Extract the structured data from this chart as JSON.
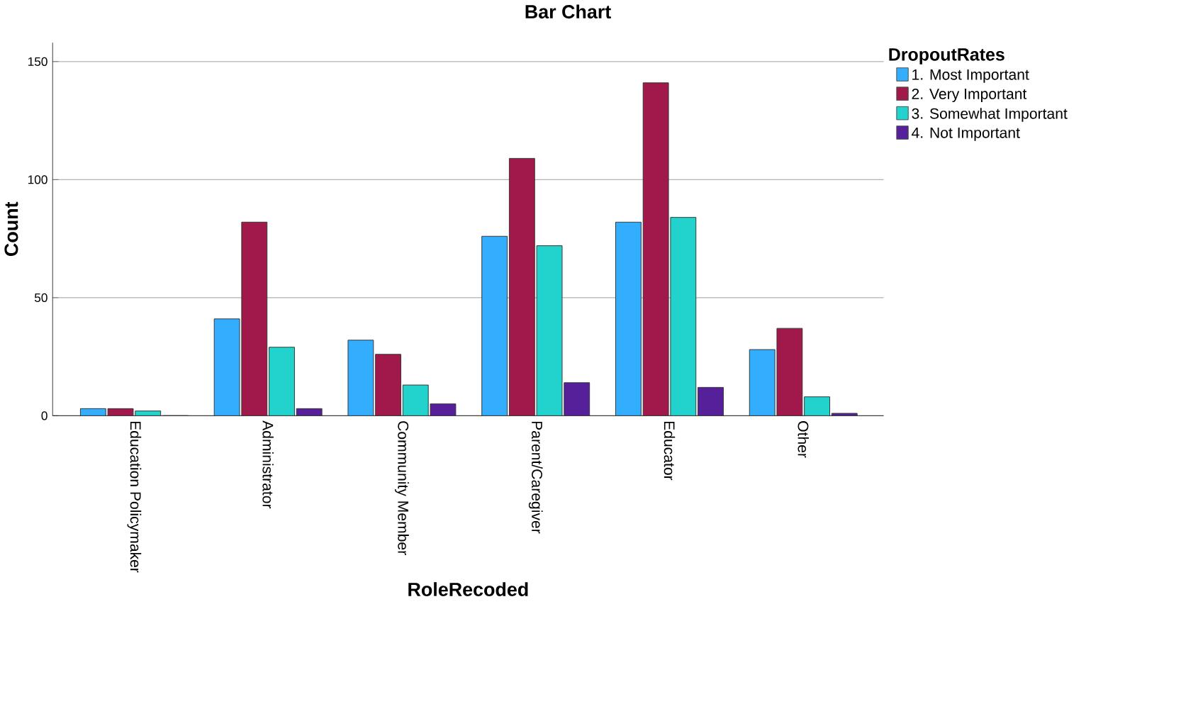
{
  "chart_data": {
    "type": "bar",
    "title": "Bar Chart",
    "xlabel": "RoleRecoded",
    "ylabel": "Count",
    "legend_title": "DropoutRates",
    "categories": [
      "Education Policymaker",
      "Administrator",
      "Community Member",
      "Parent/Caregiver",
      "Educator",
      "Other"
    ],
    "series": [
      {
        "name": "1. Most Important",
        "color": "#33aeff",
        "values": [
          3,
          41,
          32,
          76,
          82,
          28
        ]
      },
      {
        "name": "2. Very Important",
        "color": "#a0194a",
        "values": [
          3,
          82,
          26,
          109,
          141,
          37
        ]
      },
      {
        "name": "3. Somewhat Important",
        "color": "#22d3cd",
        "values": [
          2,
          29,
          13,
          72,
          84,
          8
        ]
      },
      {
        "name": "4. Not Important",
        "color": "#56209a",
        "values": [
          0,
          3,
          5,
          14,
          12,
          1
        ]
      }
    ],
    "ylim": [
      0,
      158
    ],
    "yticks": [
      0,
      50,
      100,
      150
    ],
    "grid": "y",
    "legend": "top right"
  }
}
